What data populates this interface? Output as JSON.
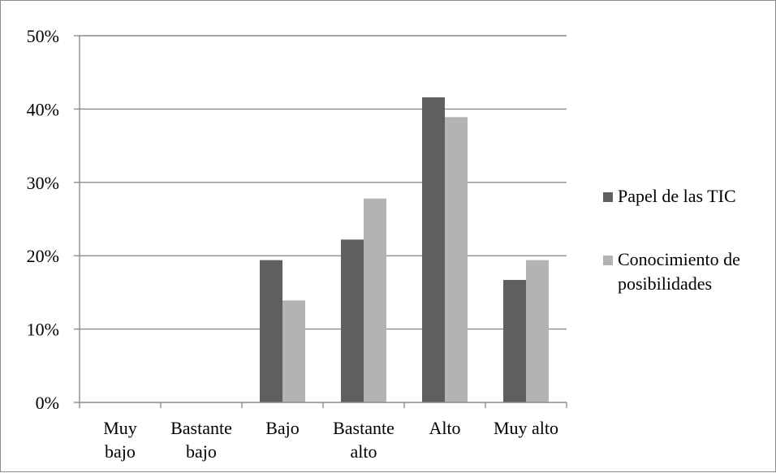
{
  "chart_data": {
    "type": "bar",
    "categories": [
      [
        "Muy",
        "bajo"
      ],
      [
        "Bastante",
        "bajo"
      ],
      [
        "Bajo"
      ],
      [
        "Bastante",
        "alto"
      ],
      [
        "Alto"
      ],
      [
        "Muy alto"
      ]
    ],
    "series": [
      {
        "name": "Papel de las TIC",
        "color": "#5f5f5f",
        "values": [
          0,
          0,
          19.4,
          22.2,
          41.6,
          16.7
        ]
      },
      {
        "name": "Conocimiento de posibilidades",
        "name_lines": [
          "Conocimiento de",
          "posibilidades"
        ],
        "color": "#b3b3b3",
        "values": [
          0,
          0,
          13.9,
          27.8,
          38.9,
          19.4
        ]
      }
    ],
    "ylim": [
      0,
      50
    ],
    "y_ticks": [
      0,
      10,
      20,
      30,
      40,
      50
    ],
    "y_tick_labels": [
      "0%",
      "10%",
      "20%",
      "30%",
      "40%",
      "50%"
    ],
    "grid": true,
    "legend": "right",
    "title": "",
    "xlabel": "",
    "ylabel": ""
  }
}
